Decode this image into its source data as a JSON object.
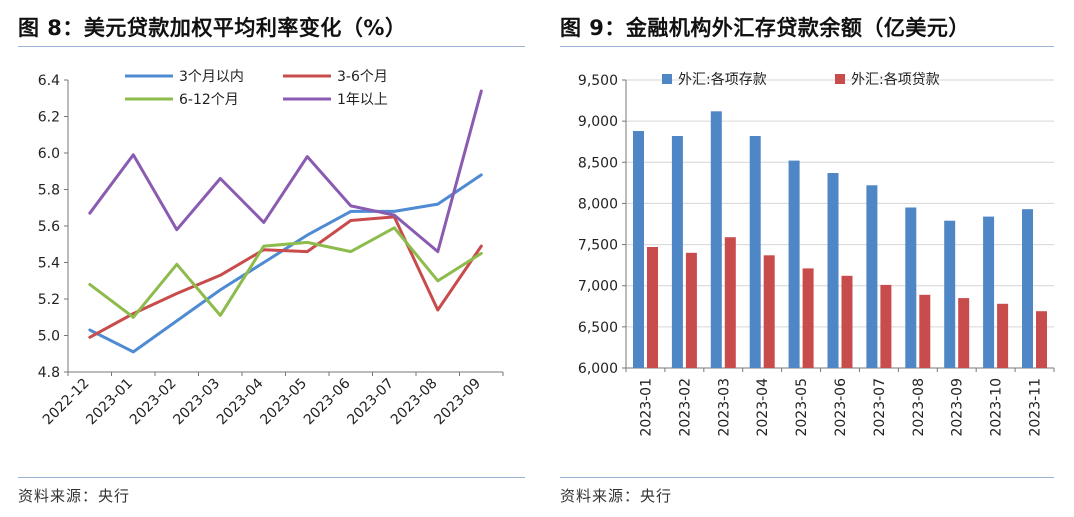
{
  "charts": [
    {
      "fig_title": "图 8：美元贷款加权平均利率变化（%）",
      "source": "资料来源：央行",
      "chart_data": {
        "type": "line",
        "title": "图 8：美元贷款加权平均利率变化（%）",
        "categories": [
          "2022-12",
          "2023-01",
          "2023-02",
          "2023-03",
          "2023-04",
          "2023-05",
          "2023-06",
          "2023-07",
          "2023-08",
          "2023-09"
        ],
        "ylim": [
          4.8,
          6.4
        ],
        "yticks": [
          "4.8",
          "5.0",
          "5.2",
          "5.4",
          "5.6",
          "5.8",
          "6.0",
          "6.2",
          "6.4"
        ],
        "grid": false,
        "legend": "top",
        "series": [
          {
            "name": "3个月以内",
            "color": "#4e8bd3",
            "values": [
              5.03,
              4.91,
              5.08,
              5.25,
              5.4,
              5.55,
              5.68,
              5.68,
              5.72,
              5.88
            ]
          },
          {
            "name": "3-6个月",
            "color": "#c94c4c",
            "values": [
              4.99,
              5.12,
              5.23,
              5.33,
              5.47,
              5.46,
              5.63,
              5.65,
              5.14,
              5.49
            ]
          },
          {
            "name": "6-12个月",
            "color": "#8dbb4c",
            "values": [
              5.28,
              5.1,
              5.39,
              5.11,
              5.49,
              5.51,
              5.46,
              5.59,
              5.3,
              5.45
            ]
          },
          {
            "name": "1年以上",
            "color": "#8a5bb0",
            "values": [
              5.67,
              5.99,
              5.58,
              5.86,
              5.62,
              5.98,
              5.71,
              5.66,
              5.46,
              6.34
            ]
          }
        ]
      }
    },
    {
      "fig_title": "图 9：金融机构外汇存贷款余额（亿美元）",
      "source": "资料来源：央行",
      "chart_data": {
        "type": "bar",
        "title": "图 9：金融机构外汇存贷款余额（亿美元）",
        "categories": [
          "2023-01",
          "2023-02",
          "2023-03",
          "2023-04",
          "2023-05",
          "2023-06",
          "2023-07",
          "2023-08",
          "2023-09",
          "2023-10",
          "2023-11"
        ],
        "ylim": [
          6000,
          9500
        ],
        "yticks": [
          "6,000",
          "6,500",
          "7,000",
          "7,500",
          "8,000",
          "8,500",
          "9,000",
          "9,500"
        ],
        "grid": true,
        "legend": "top",
        "series": [
          {
            "name": "外汇:各项存款",
            "color": "#4e86c6",
            "values": [
              8880,
              8820,
              9120,
              8820,
              8520,
              8370,
              8220,
              7950,
              7790,
              7840,
              7930
            ]
          },
          {
            "name": "外汇:各项贷款",
            "color": "#c94c4c",
            "values": [
              7470,
              7400,
              7590,
              7370,
              7210,
              7120,
              7010,
              6890,
              6850,
              6780,
              6690
            ]
          }
        ]
      }
    }
  ]
}
